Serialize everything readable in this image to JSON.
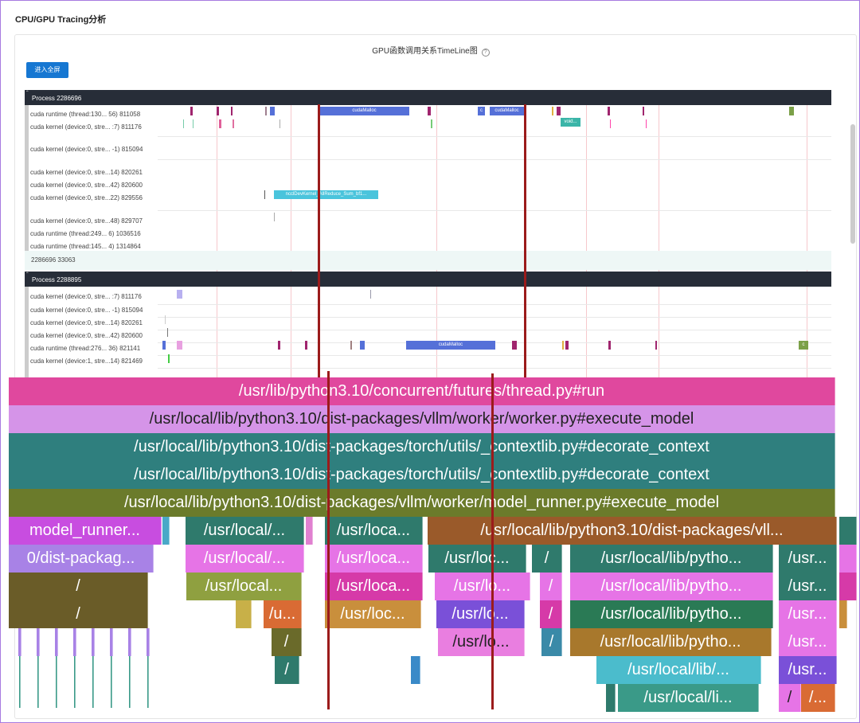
{
  "page": {
    "title": "CPU/GPU Tracing分析"
  },
  "chart": {
    "title": "GPU函数调用关系TimeLine图",
    "help_icon": "?",
    "fullscreen_label": "进入全屏"
  },
  "timeline": {
    "process1": {
      "name": "Process 2286696",
      "rows": [
        "cuda runtime (thread:130... 56) 811058",
        "cuda kernel (device:0, stre... :7) 811176",
        "cuda kernel (device:0, stre... -1) 815094",
        "cuda kernel (device:0, stre...14) 820261",
        "cuda kernel (device:0, stre...42) 820600",
        "cuda kernel (device:0, stre...22) 829556",
        "cuda kernel (device:0, stre...48) 829707",
        "cuda runtime (thread:249... 6) 1036516",
        "cuda runtime (thread:145... 4) 1314864"
      ],
      "collapsed": "2286696 33063"
    },
    "process2": {
      "name": "Process 2288895",
      "rows": [
        "cuda kernel (device:0, stre... :7) 811176",
        "cuda kernel (device:0, stre... -1) 815094",
        "cuda kernel (device:0, stre...14) 820261",
        "cuda kernel (device:0, stre...42) 820600",
        "cuda runtime (thread:276... 36) 821141",
        "cuda kernel (device:1, stre...14) 821469"
      ]
    },
    "events": [
      "cudaMalloc",
      "c",
      "cudaMalloc",
      "void...",
      "ncclDevKernel_AllReduce_Sum_bf1...",
      "cudaMalloc",
      "c"
    ]
  },
  "flame": {
    "labels": [
      "/usr/lib/python3.10/concurrent/futures/thread.py#run",
      "/usr/local/lib/python3.10/dist-packages/vllm/worker/worker.py#execute_model",
      "/usr/local/lib/python3.10/dist-packages/torch/utils/_contextlib.py#decorate_context",
      "/usr/local/lib/python3.10/dist-packages/torch/utils/_contextlib.py#decorate_context",
      "/usr/local/lib/python3.10/dist-packages/vllm/worker/model_runner.py#execute_model",
      "model_runner...",
      "/usr/local/...",
      "/usr/loca...",
      "/usr/local/lib/python3.10/dist-packages/vll...",
      "0/dist-packag...",
      "/usr/loc...",
      "/",
      "/usr/local/lib/pytho...",
      "/usr...",
      "/usr/local...",
      "/usr/lo...",
      "/u...",
      "/usr/local/lib/...",
      "/usr/local/li...",
      "/..."
    ]
  }
}
